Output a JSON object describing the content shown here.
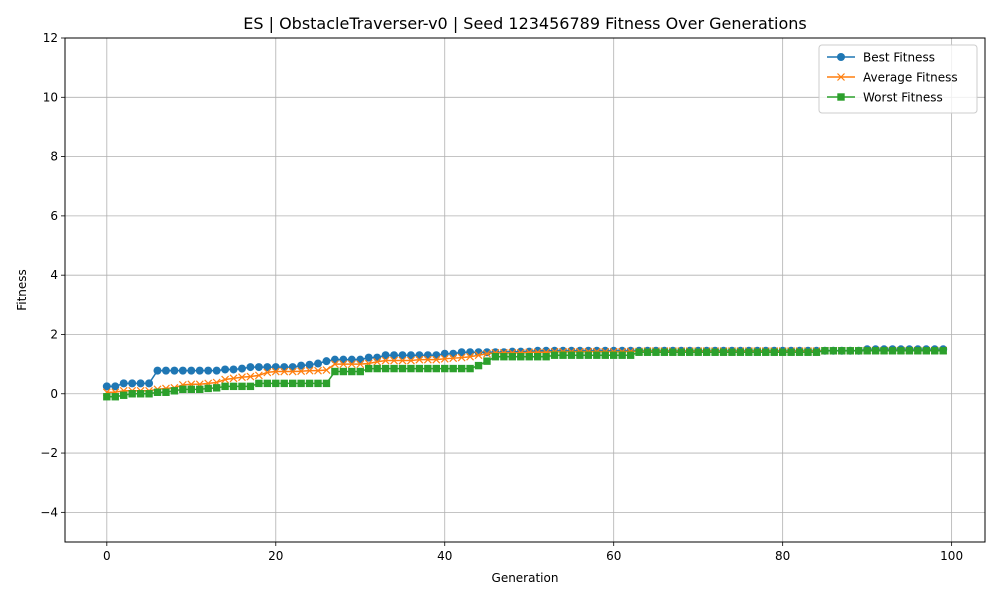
{
  "chart_data": {
    "type": "line",
    "title": "ES | ObstacleTraverser-v0 | Seed 123456789 Fitness Over Generations",
    "xlabel": "Generation",
    "ylabel": "Fitness",
    "xlim": [
      -4.95,
      103.95
    ],
    "ylim": [
      -5,
      12
    ],
    "xticks": [
      0,
      20,
      40,
      60,
      80,
      100
    ],
    "yticks": [
      -4,
      -2,
      0,
      2,
      4,
      6,
      8,
      10,
      12
    ],
    "grid": true,
    "legend_position": "top-right",
    "x": [
      0,
      1,
      2,
      3,
      4,
      5,
      6,
      7,
      8,
      9,
      10,
      11,
      12,
      13,
      14,
      15,
      16,
      17,
      18,
      19,
      20,
      21,
      22,
      23,
      24,
      25,
      26,
      27,
      28,
      29,
      30,
      31,
      32,
      33,
      34,
      35,
      36,
      37,
      38,
      39,
      40,
      41,
      42,
      43,
      44,
      45,
      46,
      47,
      48,
      49,
      50,
      51,
      52,
      53,
      54,
      55,
      56,
      57,
      58,
      59,
      60,
      61,
      62,
      63,
      64,
      65,
      66,
      67,
      68,
      69,
      70,
      71,
      72,
      73,
      74,
      75,
      76,
      77,
      78,
      79,
      80,
      81,
      82,
      83,
      84,
      85,
      86,
      87,
      88,
      89,
      90,
      91,
      92,
      93,
      94,
      95,
      96,
      97,
      98,
      99
    ],
    "series": [
      {
        "name": "Best Fitness",
        "color": "#1f77b4",
        "marker": "circle",
        "values": [
          0.25,
          0.25,
          0.35,
          0.35,
          0.35,
          0.35,
          0.78,
          0.78,
          0.78,
          0.78,
          0.78,
          0.78,
          0.78,
          0.78,
          0.82,
          0.82,
          0.85,
          0.9,
          0.9,
          0.9,
          0.9,
          0.9,
          0.9,
          0.95,
          0.98,
          1.02,
          1.1,
          1.15,
          1.15,
          1.15,
          1.15,
          1.22,
          1.22,
          1.3,
          1.3,
          1.3,
          1.3,
          1.3,
          1.3,
          1.3,
          1.35,
          1.35,
          1.4,
          1.4,
          1.4,
          1.4,
          1.4,
          1.4,
          1.42,
          1.42,
          1.42,
          1.45,
          1.45,
          1.45,
          1.45,
          1.45,
          1.45,
          1.45,
          1.45,
          1.45,
          1.45,
          1.45,
          1.45,
          1.45,
          1.45,
          1.45,
          1.45,
          1.45,
          1.45,
          1.45,
          1.45,
          1.45,
          1.45,
          1.45,
          1.45,
          1.45,
          1.45,
          1.45,
          1.45,
          1.45,
          1.45,
          1.45,
          1.45,
          1.45,
          1.45,
          1.45,
          1.45,
          1.45,
          1.45,
          1.45,
          1.5,
          1.5,
          1.5,
          1.5,
          1.5,
          1.5,
          1.5,
          1.5,
          1.5,
          1.5
        ]
      },
      {
        "name": "Average Fitness",
        "color": "#ff7f0e",
        "marker": "x",
        "values": [
          0.05,
          0.05,
          0.1,
          0.1,
          0.1,
          0.1,
          0.15,
          0.18,
          0.2,
          0.3,
          0.32,
          0.32,
          0.35,
          0.38,
          0.48,
          0.52,
          0.56,
          0.58,
          0.62,
          0.72,
          0.75,
          0.75,
          0.75,
          0.76,
          0.78,
          0.78,
          0.8,
          1.0,
          1.0,
          1.0,
          1.0,
          1.02,
          1.08,
          1.12,
          1.12,
          1.12,
          1.12,
          1.15,
          1.15,
          1.15,
          1.18,
          1.2,
          1.22,
          1.25,
          1.3,
          1.35,
          1.38,
          1.38,
          1.38,
          1.38,
          1.4,
          1.4,
          1.4,
          1.42,
          1.42,
          1.42,
          1.42,
          1.42,
          1.42,
          1.42,
          1.42,
          1.42,
          1.43,
          1.43,
          1.44,
          1.44,
          1.44,
          1.44,
          1.44,
          1.44,
          1.44,
          1.44,
          1.44,
          1.44,
          1.44,
          1.44,
          1.44,
          1.44,
          1.44,
          1.44,
          1.44,
          1.44,
          1.44,
          1.44,
          1.44,
          1.45,
          1.45,
          1.45,
          1.45,
          1.45,
          1.46,
          1.46,
          1.46,
          1.46,
          1.46,
          1.46,
          1.46,
          1.46,
          1.46,
          1.46
        ]
      },
      {
        "name": "Worst Fitness",
        "color": "#2ca02c",
        "marker": "square",
        "values": [
          -0.1,
          -0.1,
          -0.05,
          0.0,
          0.0,
          0.0,
          0.05,
          0.05,
          0.1,
          0.15,
          0.15,
          0.15,
          0.18,
          0.2,
          0.25,
          0.25,
          0.25,
          0.25,
          0.35,
          0.35,
          0.35,
          0.35,
          0.35,
          0.35,
          0.35,
          0.35,
          0.35,
          0.75,
          0.75,
          0.75,
          0.75,
          0.85,
          0.85,
          0.85,
          0.85,
          0.85,
          0.85,
          0.85,
          0.85,
          0.85,
          0.85,
          0.85,
          0.85,
          0.85,
          0.95,
          1.1,
          1.25,
          1.25,
          1.25,
          1.25,
          1.25,
          1.25,
          1.25,
          1.3,
          1.3,
          1.3,
          1.3,
          1.3,
          1.3,
          1.3,
          1.3,
          1.3,
          1.3,
          1.4,
          1.4,
          1.4,
          1.4,
          1.4,
          1.4,
          1.4,
          1.4,
          1.4,
          1.4,
          1.4,
          1.4,
          1.4,
          1.4,
          1.4,
          1.4,
          1.4,
          1.4,
          1.4,
          1.4,
          1.4,
          1.4,
          1.45,
          1.45,
          1.45,
          1.45,
          1.45,
          1.45,
          1.45,
          1.45,
          1.45,
          1.45,
          1.45,
          1.45,
          1.45,
          1.45,
          1.45
        ]
      }
    ]
  }
}
